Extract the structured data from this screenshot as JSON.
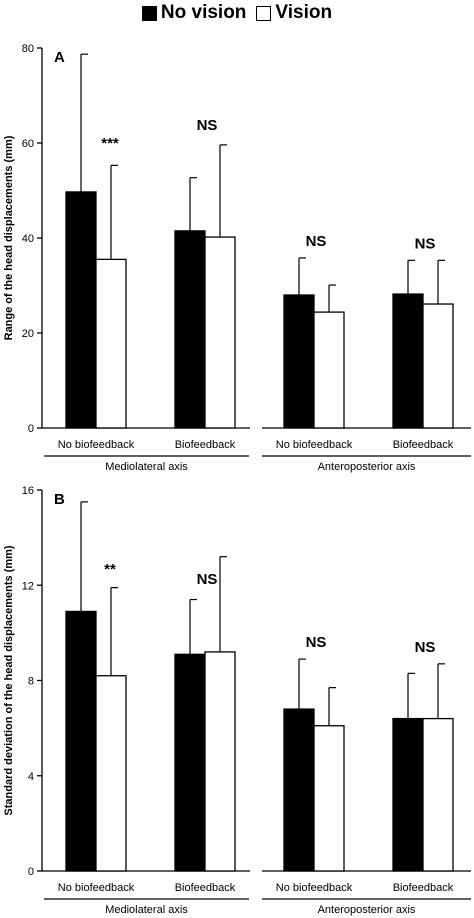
{
  "legend": {
    "items": [
      {
        "label": "No vision",
        "color": "#000000"
      },
      {
        "label": "Vision",
        "color": "#ffffff"
      }
    ]
  },
  "chart_data": [
    {
      "type": "bar",
      "panel_label": "A",
      "ylabel": "Range of the head displacements (mm)",
      "ylim": [
        0,
        80
      ],
      "yticks": [
        0,
        20,
        40,
        60,
        80
      ],
      "groups": [
        {
          "label": "No biofeedback",
          "axis": "Mediolateral axis"
        },
        {
          "label": "Biofeedback",
          "axis": "Mediolateral axis"
        },
        {
          "label": "No biofeedback",
          "axis": "Anteroposterior axis"
        },
        {
          "label": "Biofeedback",
          "axis": "Anteroposterior axis"
        }
      ],
      "axis_labels": [
        "Mediolateral axis",
        "Anteroposterior axis"
      ],
      "series": [
        {
          "name": "No vision",
          "values": [
            49.7,
            41.5,
            28.0,
            28.2
          ],
          "errors": [
            29.0,
            11.2,
            7.8,
            7.1
          ]
        },
        {
          "name": "Vision",
          "values": [
            35.5,
            40.2,
            24.4,
            26.1
          ],
          "errors": [
            19.8,
            19.4,
            5.7,
            9.2
          ]
        }
      ],
      "annotations": [
        {
          "group": 0,
          "text": "***"
        },
        {
          "group": 1,
          "text": "NS"
        },
        {
          "group": 2,
          "text": "NS"
        },
        {
          "group": 3,
          "text": "NS"
        }
      ]
    },
    {
      "type": "bar",
      "panel_label": "B",
      "ylabel": "Standard deviation of the head displacements (mm)",
      "ylim": [
        0,
        16
      ],
      "yticks": [
        0,
        4,
        8,
        12,
        16
      ],
      "groups": [
        {
          "label": "No biofeedback",
          "axis": "Mediolateral axis"
        },
        {
          "label": "Biofeedback",
          "axis": "Mediolateral axis"
        },
        {
          "label": "No biofeedback",
          "axis": "Anteroposterior axis"
        },
        {
          "label": "Biofeedback",
          "axis": "Anteroposterior axis"
        }
      ],
      "axis_labels": [
        "Mediolateral axis",
        "Anteroposterior axis"
      ],
      "series": [
        {
          "name": "No vision",
          "values": [
            10.9,
            9.1,
            6.8,
            6.4
          ],
          "errors": [
            4.6,
            2.3,
            2.1,
            1.9
          ]
        },
        {
          "name": "Vision",
          "values": [
            8.2,
            9.2,
            6.1,
            6.4
          ],
          "errors": [
            3.7,
            4.0,
            1.6,
            2.3
          ]
        }
      ],
      "annotations": [
        {
          "group": 0,
          "text": "**"
        },
        {
          "group": 1,
          "text": "NS"
        },
        {
          "group": 2,
          "text": "NS"
        },
        {
          "group": 3,
          "text": "NS"
        }
      ]
    }
  ]
}
